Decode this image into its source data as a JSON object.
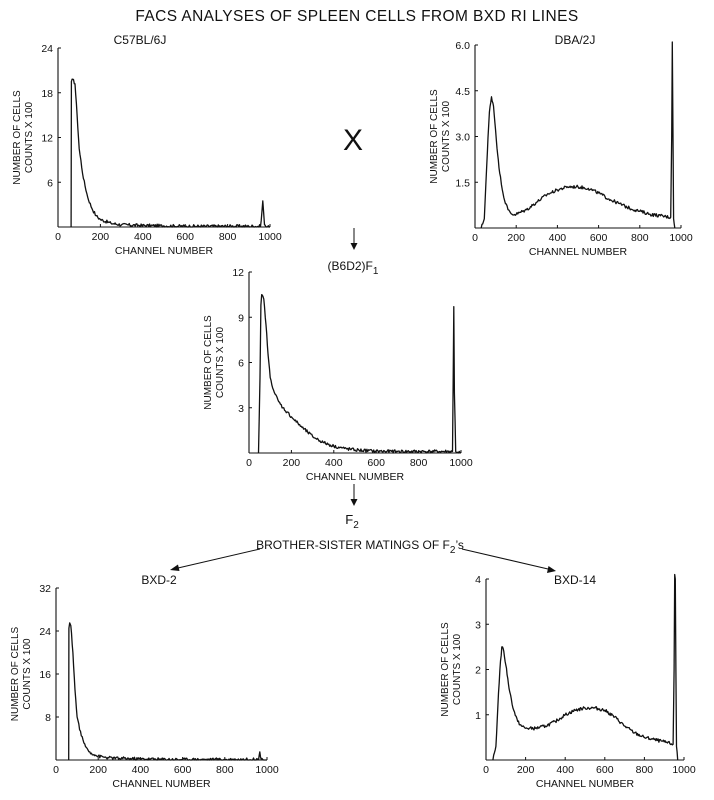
{
  "figure": {
    "title": "FACS ANALYSES OF SPLEEN CELLS FROM BXD RI LINES",
    "cross_symbol": "X",
    "f1_label_main": "(B6D2)F",
    "f1_label_sub": "1",
    "f2_label_main": "F",
    "f2_label_sub": "2",
    "matings_label_main": "BROTHER-SISTER MATINGS OF F",
    "matings_label_sub": "2",
    "matings_label_suffix": "’s",
    "colors": {
      "ink": "#111111",
      "background": "#ffffff"
    }
  },
  "chart_data": [
    {
      "id": "c57",
      "type": "line",
      "title": "C57BL/6J",
      "xlabel": "CHANNEL NUMBER",
      "ylabel_line1": "NUMBER OF CELLS",
      "ylabel_line2": "COUNTS X 100",
      "xlim": [
        0,
        1000
      ],
      "ylim": [
        0,
        24
      ],
      "xticks": [
        0,
        200,
        400,
        600,
        800,
        1000
      ],
      "xtick_labels": [
        "0",
        "200",
        "400",
        "600",
        "800",
        "1000"
      ],
      "yticks": [
        6,
        12,
        18,
        24
      ],
      "ytick_labels": [
        "6",
        "12",
        "18",
        "24"
      ],
      "series": [
        {
          "x": [
            62,
            63,
            70,
            80,
            90,
            100,
            120,
            140,
            160,
            180,
            200,
            250,
            300,
            400,
            500,
            600,
            700,
            800,
            900,
            955,
            962,
            966,
            970,
            974,
            980,
            1000
          ],
          "y": [
            0,
            19.5,
            19.8,
            19.2,
            15,
            10.5,
            6.5,
            4,
            2.5,
            1.5,
            1,
            0.5,
            0.3,
            0.2,
            0.15,
            0.1,
            0.1,
            0.1,
            0.1,
            0.1,
            2,
            3.5,
            2,
            0.3,
            0.05,
            0
          ]
        }
      ]
    },
    {
      "id": "dba",
      "type": "line",
      "title": "DBA/2J",
      "xlabel": "CHANNEL NUMBER",
      "ylabel_line1": "NUMBER OF CELLS",
      "ylabel_line2": "COUNTS X 100",
      "xlim": [
        0,
        1000
      ],
      "ylim": [
        0,
        6
      ],
      "xticks": [
        0,
        200,
        400,
        600,
        800,
        1000
      ],
      "xtick_labels": [
        "0",
        "200",
        "400",
        "600",
        "800",
        "1000"
      ],
      "yticks": [
        1.5,
        3.0,
        4.5,
        6.0
      ],
      "ytick_labels": [
        "1.5",
        "3.0",
        "4.5",
        "6.0"
      ],
      "series": [
        {
          "x": [
            30,
            45,
            60,
            70,
            80,
            90,
            100,
            110,
            120,
            140,
            160,
            180,
            200,
            250,
            300,
            350,
            400,
            450,
            500,
            550,
            600,
            650,
            700,
            750,
            800,
            850,
            900,
            950,
            955,
            958,
            961,
            964,
            970
          ],
          "y": [
            0,
            0.3,
            2.5,
            3.8,
            4.3,
            4.0,
            3.2,
            2.4,
            1.8,
            1.0,
            0.6,
            0.45,
            0.45,
            0.6,
            0.85,
            1.1,
            1.25,
            1.35,
            1.35,
            1.3,
            1.15,
            0.95,
            0.8,
            0.65,
            0.55,
            0.45,
            0.4,
            0.35,
            3.0,
            6.1,
            3.0,
            0.3,
            0
          ]
        }
      ]
    },
    {
      "id": "f1",
      "type": "line",
      "title": "",
      "xlabel": "CHANNEL NUMBER",
      "ylabel_line1": "NUMBER OF CELLS",
      "ylabel_line2": "COUNTS X 100",
      "xlim": [
        0,
        1000
      ],
      "ylim": [
        0,
        12
      ],
      "xticks": [
        0,
        200,
        400,
        600,
        800,
        1000
      ],
      "xtick_labels": [
        "0",
        "200",
        "400",
        "600",
        "800",
        "1000"
      ],
      "yticks": [
        3,
        6,
        9,
        12
      ],
      "ytick_labels": [
        "3",
        "6",
        "9",
        "12"
      ],
      "series": [
        {
          "x": [
            45,
            52,
            56,
            60,
            70,
            80,
            90,
            100,
            120,
            140,
            160,
            200,
            250,
            300,
            350,
            400,
            450,
            500,
            600,
            700,
            800,
            900,
            960,
            963,
            966,
            969,
            975,
            1000
          ],
          "y": [
            0,
            5,
            9.8,
            10.5,
            10.2,
            8.5,
            6.5,
            5.0,
            4.0,
            3.4,
            3.0,
            2.4,
            1.7,
            1.1,
            0.7,
            0.45,
            0.3,
            0.2,
            0.12,
            0.1,
            0.1,
            0.1,
            0.1,
            5,
            9.7,
            4,
            0.1,
            0
          ]
        }
      ]
    },
    {
      "id": "bxd2",
      "type": "line",
      "title": "BXD-2",
      "xlabel": "CHANNEL NUMBER",
      "ylabel_line1": "NUMBER OF CELLS",
      "ylabel_line2": "COUNTS X 100",
      "xlim": [
        0,
        1000
      ],
      "ylim": [
        0,
        32
      ],
      "xticks": [
        0,
        200,
        400,
        600,
        800,
        1000
      ],
      "xtick_labels": [
        "0",
        "200",
        "400",
        "600",
        "800",
        "1000"
      ],
      "yticks": [
        8,
        16,
        24,
        32
      ],
      "ytick_labels": [
        "8",
        "16",
        "24",
        "32"
      ],
      "series": [
        {
          "x": [
            60,
            61,
            65,
            70,
            80,
            90,
            100,
            120,
            140,
            160,
            180,
            200,
            250,
            300,
            400,
            500,
            600,
            700,
            800,
            900,
            960,
            966,
            972,
            980,
            1000
          ],
          "y": [
            0,
            24.5,
            25.5,
            25,
            20,
            13,
            8,
            4.5,
            2.5,
            1.5,
            1.0,
            0.7,
            0.4,
            0.3,
            0.2,
            0.15,
            0.1,
            0.1,
            0.1,
            0.1,
            0.1,
            1.5,
            0.2,
            0.1,
            0
          ]
        }
      ]
    },
    {
      "id": "bxd14",
      "type": "line",
      "title": "BXD-14",
      "xlabel": "CHANNEL NUMBER",
      "ylabel_line1": "NUMBER OF CELLS",
      "ylabel_line2": "COUNTS X 100",
      "xlim": [
        0,
        1000
      ],
      "ylim": [
        0,
        4
      ],
      "xticks": [
        0,
        200,
        400,
        600,
        800,
        1000
      ],
      "xtick_labels": [
        "0",
        "200",
        "400",
        "600",
        "800",
        "1000"
      ],
      "yticks": [
        1,
        2,
        3,
        4
      ],
      "ytick_labels": [
        "1",
        "2",
        "3",
        "4"
      ],
      "series": [
        {
          "x": [
            35,
            50,
            60,
            70,
            80,
            90,
            100,
            110,
            120,
            140,
            160,
            180,
            200,
            250,
            300,
            350,
            400,
            450,
            500,
            550,
            600,
            650,
            700,
            750,
            800,
            850,
            900,
            945,
            950,
            953,
            956,
            959,
            962,
            968
          ],
          "y": [
            0,
            0.3,
            1.2,
            2.0,
            2.5,
            2.4,
            2.1,
            1.8,
            1.5,
            1.1,
            0.85,
            0.75,
            0.7,
            0.7,
            0.75,
            0.85,
            1.0,
            1.1,
            1.15,
            1.15,
            1.1,
            0.95,
            0.75,
            0.6,
            0.5,
            0.45,
            0.4,
            0.35,
            2.0,
            4.1,
            4.0,
            2.0,
            0.3,
            0
          ]
        }
      ]
    }
  ]
}
